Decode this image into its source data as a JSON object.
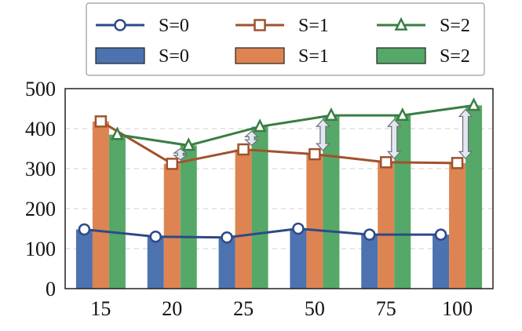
{
  "chart_data": {
    "type": "bar",
    "title": "",
    "xlabel": "",
    "ylabel": "",
    "categories": [
      "15",
      "20",
      "25",
      "50",
      "75",
      "100"
    ],
    "ylim": [
      0,
      500
    ],
    "yticks": [
      0,
      100,
      200,
      300,
      400,
      500
    ],
    "grid": true,
    "legend_position": "top",
    "bar_series": [
      {
        "name": "S=0",
        "color": "#4C72B0",
        "values": [
          148,
          130,
          128,
          150,
          135,
          135
        ]
      },
      {
        "name": "S=1",
        "color": "#DD8452",
        "values": [
          418,
          312,
          348,
          336,
          316,
          314
        ]
      },
      {
        "name": "S=2",
        "color": "#55A868",
        "values": [
          385,
          358,
          405,
          433,
          433,
          458
        ]
      }
    ],
    "line_series": [
      {
        "name": "S=0",
        "color": "#2E4A86",
        "marker": "circle",
        "values": [
          148,
          130,
          128,
          150,
          135,
          135
        ]
      },
      {
        "name": "S=1",
        "color": "#A0522D",
        "marker": "square",
        "values": [
          418,
          312,
          348,
          336,
          316,
          314
        ]
      },
      {
        "name": "S=2",
        "color": "#3A7D44",
        "marker": "triangle",
        "values": [
          385,
          358,
          405,
          433,
          433,
          458
        ]
      }
    ],
    "gap_arrows": [
      {
        "category": "20",
        "from": 322,
        "to": 350
      },
      {
        "category": "25",
        "from": 358,
        "to": 394
      },
      {
        "category": "50",
        "from": 345,
        "to": 423
      },
      {
        "category": "75",
        "from": 325,
        "to": 423
      },
      {
        "category": "100",
        "from": 325,
        "to": 448
      }
    ]
  }
}
